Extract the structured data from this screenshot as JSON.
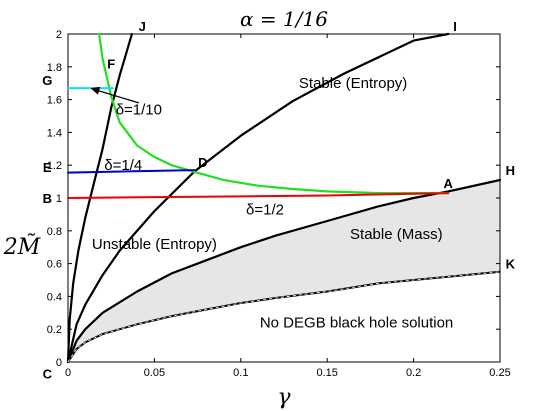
{
  "chart_data": {
    "type": "line",
    "title": "α = 1/16",
    "xlabel": "γ",
    "ylabel": "2M̃",
    "xlim": [
      0,
      0.25
    ],
    "ylim": [
      0,
      2
    ],
    "xticks": [
      0,
      0.05,
      0.1,
      0.15,
      0.2,
      0.25
    ],
    "xtick_labels": [
      "0",
      "0.05",
      "0.1",
      "0.15",
      "0.2",
      "0.25"
    ],
    "yticks": [
      0,
      0.2,
      0.4,
      0.6,
      0.8,
      1,
      1.2,
      1.4,
      1.6,
      1.8,
      2
    ],
    "ytick_labels": [
      "0",
      "0.2",
      "0.4",
      "0.6",
      "0.8",
      "1",
      "1.2",
      "1.4",
      "1.6",
      "1.8",
      "2"
    ],
    "grid": false,
    "series": [
      {
        "id": "curve-J",
        "color": "#000000",
        "x": [
          0,
          0.001,
          0.003,
          0.006,
          0.01,
          0.015,
          0.02,
          0.025,
          0.03,
          0.037
        ],
        "y": [
          0,
          0.26,
          0.48,
          0.68,
          0.88,
          1.09,
          1.3,
          1.55,
          1.75,
          2.0
        ]
      },
      {
        "id": "curve-I",
        "color": "#000000",
        "x": [
          0,
          0.005,
          0.01,
          0.02,
          0.03,
          0.05,
          0.073,
          0.1,
          0.13,
          0.16,
          0.2,
          0.22
        ],
        "y": [
          0,
          0.23,
          0.35,
          0.53,
          0.68,
          0.92,
          1.16,
          1.38,
          1.59,
          1.76,
          1.96,
          2.0
        ]
      },
      {
        "id": "curve-H",
        "color": "#000000",
        "x": [
          0,
          0.005,
          0.01,
          0.02,
          0.04,
          0.06,
          0.08,
          0.1,
          0.12,
          0.15,
          0.18,
          0.2,
          0.22,
          0.25
        ],
        "y": [
          0,
          0.13,
          0.2,
          0.3,
          0.43,
          0.54,
          0.62,
          0.7,
          0.77,
          0.86,
          0.95,
          1.0,
          1.04,
          1.11
        ]
      },
      {
        "id": "curve-K",
        "color": "#000000",
        "dash": true,
        "x": [
          0,
          0.005,
          0.01,
          0.02,
          0.04,
          0.06,
          0.08,
          0.1,
          0.12,
          0.15,
          0.18,
          0.2,
          0.22,
          0.25
        ],
        "y": [
          0,
          0.08,
          0.12,
          0.17,
          0.23,
          0.28,
          0.32,
          0.36,
          0.39,
          0.43,
          0.48,
          0.5,
          0.52,
          0.55
        ]
      },
      {
        "id": "curve-green",
        "color": "#22dd22",
        "x": [
          0.018,
          0.02,
          0.025,
          0.03,
          0.04,
          0.05,
          0.06,
          0.073,
          0.09,
          0.11,
          0.13,
          0.15,
          0.18,
          0.22
        ],
        "y": [
          2.0,
          1.85,
          1.62,
          1.46,
          1.32,
          1.25,
          1.2,
          1.16,
          1.11,
          1.075,
          1.055,
          1.04,
          1.03,
          1.03
        ]
      },
      {
        "id": "line-cyan",
        "color": "#00e5ff",
        "x": [
          0,
          0.026
        ],
        "y": [
          1.67,
          1.67
        ]
      },
      {
        "id": "line-blue",
        "color": "#0000cc",
        "x": [
          0,
          0.073
        ],
        "y": [
          1.155,
          1.17
        ]
      },
      {
        "id": "line-red",
        "color": "#ee0000",
        "x": [
          0,
          0.15,
          0.22
        ],
        "y": [
          1.0,
          1.015,
          1.03
        ]
      }
    ],
    "shaded_region": {
      "between": [
        "curve-H",
        "curve-K"
      ],
      "color": "#e6e6e6"
    },
    "point_labels": [
      {
        "text": "J",
        "x": 0.043,
        "y": 2.05
      },
      {
        "text": "I",
        "x": 0.224,
        "y": 2.05
      },
      {
        "text": "F",
        "x": 0.025,
        "y": 1.82
      },
      {
        "text": "G",
        "x": -0.012,
        "y": 1.72
      },
      {
        "text": "D",
        "x": 0.078,
        "y": 1.22
      },
      {
        "text": "E",
        "x": -0.012,
        "y": 1.19
      },
      {
        "text": "A",
        "x": 0.22,
        "y": 1.09
      },
      {
        "text": "H",
        "x": 0.256,
        "y": 1.17
      },
      {
        "text": "B",
        "x": -0.012,
        "y": 1.0
      },
      {
        "text": "K",
        "x": 0.256,
        "y": 0.6
      },
      {
        "text": "C",
        "x": -0.012,
        "y": -0.07
      }
    ],
    "annotations": [
      {
        "text": "Stable (Entropy)",
        "x": 0.165,
        "y": 1.7
      },
      {
        "text": "δ=1/10",
        "x": 0.041,
        "y": 1.54
      },
      {
        "text": "δ=1/4",
        "x": 0.032,
        "y": 1.2
      },
      {
        "text": "D",
        "x": 0.078,
        "y": 1.22
      },
      {
        "text": "δ=1/2",
        "x": 0.114,
        "y": 0.93
      },
      {
        "text": "Unstable (Entropy)",
        "x": 0.05,
        "y": 0.72
      },
      {
        "text": "Stable (Mass)",
        "x": 0.19,
        "y": 0.78
      },
      {
        "text": "No DEGB black hole solution",
        "x": 0.167,
        "y": 0.24
      }
    ],
    "arrow": {
      "from": [
        0.041,
        1.58
      ],
      "to": [
        0.013,
        1.67
      ]
    }
  }
}
